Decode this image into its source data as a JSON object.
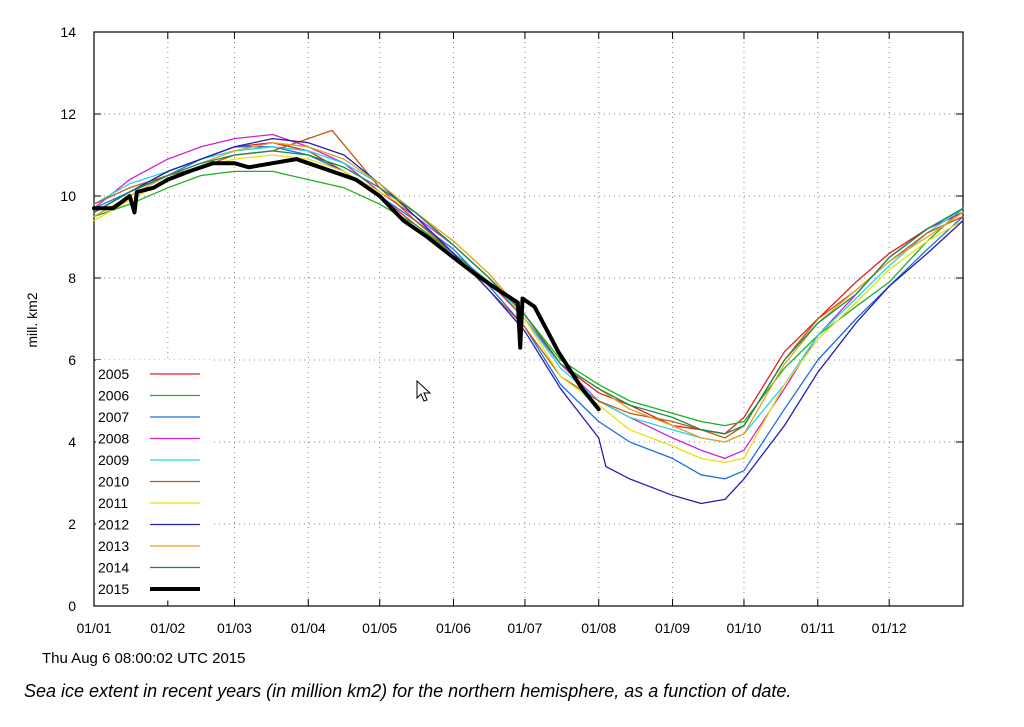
{
  "timestamp": "Thu Aug  6 08:00:02 UTC 2015",
  "caption": "Sea ice extent in recent years (in million km2) for the northern hemisphere, as a function of date.",
  "chart_data": {
    "type": "line",
    "title": "",
    "xlabel": "",
    "ylabel": "mill. km2",
    "xlim": [
      0,
      365
    ],
    "ylim": [
      0,
      14
    ],
    "yticks": [
      0,
      2,
      4,
      6,
      8,
      10,
      12,
      14
    ],
    "xticks": [
      {
        "label": "01/01",
        "day": 0
      },
      {
        "label": "01/02",
        "day": 31
      },
      {
        "label": "01/03",
        "day": 59
      },
      {
        "label": "01/04",
        "day": 90
      },
      {
        "label": "01/05",
        "day": 120
      },
      {
        "label": "01/06",
        "day": 151
      },
      {
        "label": "01/07",
        "day": 181
      },
      {
        "label": "01/08",
        "day": 212
      },
      {
        "label": "01/09",
        "day": 243
      },
      {
        "label": "01/10",
        "day": 273
      },
      {
        "label": "01/11",
        "day": 304
      },
      {
        "label": "01/12",
        "day": 334
      }
    ],
    "grid": true,
    "legend_position": "bottom-left",
    "series": [
      {
        "name": "2005",
        "color": "#e02020",
        "width": 1.3,
        "points": [
          [
            0,
            9.6
          ],
          [
            15,
            10.1
          ],
          [
            31,
            10.6
          ],
          [
            45,
            10.9
          ],
          [
            59,
            11.2
          ],
          [
            75,
            11.3
          ],
          [
            90,
            11.1
          ],
          [
            105,
            10.6
          ],
          [
            120,
            10.0
          ],
          [
            135,
            9.3
          ],
          [
            151,
            8.6
          ],
          [
            166,
            7.9
          ],
          [
            181,
            7.0
          ],
          [
            196,
            5.9
          ],
          [
            212,
            5.2
          ],
          [
            225,
            4.9
          ],
          [
            243,
            4.4
          ],
          [
            255,
            4.3
          ],
          [
            265,
            4.2
          ],
          [
            273,
            4.6
          ],
          [
            290,
            6.2
          ],
          [
            304,
            7.0
          ],
          [
            320,
            7.9
          ],
          [
            334,
            8.6
          ],
          [
            350,
            9.2
          ],
          [
            365,
            9.6
          ]
        ]
      },
      {
        "name": "2006",
        "color": "#20b020",
        "width": 1.3,
        "points": [
          [
            0,
            9.5
          ],
          [
            15,
            9.8
          ],
          [
            31,
            10.2
          ],
          [
            45,
            10.5
          ],
          [
            59,
            10.6
          ],
          [
            75,
            10.6
          ],
          [
            90,
            10.4
          ],
          [
            105,
            10.2
          ],
          [
            120,
            9.8
          ],
          [
            135,
            9.3
          ],
          [
            151,
            8.6
          ],
          [
            166,
            7.9
          ],
          [
            181,
            7.1
          ],
          [
            196,
            6.0
          ],
          [
            212,
            5.4
          ],
          [
            225,
            5.0
          ],
          [
            243,
            4.7
          ],
          [
            255,
            4.5
          ],
          [
            265,
            4.4
          ],
          [
            273,
            4.5
          ],
          [
            290,
            5.8
          ],
          [
            304,
            6.6
          ],
          [
            320,
            7.3
          ],
          [
            334,
            7.9
          ],
          [
            350,
            8.9
          ],
          [
            365,
            9.7
          ]
        ]
      },
      {
        "name": "2007",
        "color": "#1e6ee0",
        "width": 1.3,
        "points": [
          [
            0,
            9.7
          ],
          [
            15,
            10.1
          ],
          [
            31,
            10.5
          ],
          [
            45,
            10.9
          ],
          [
            59,
            11.2
          ],
          [
            75,
            11.2
          ],
          [
            90,
            11.0
          ],
          [
            105,
            10.6
          ],
          [
            120,
            10.0
          ],
          [
            135,
            9.4
          ],
          [
            151,
            8.7
          ],
          [
            166,
            7.8
          ],
          [
            181,
            6.8
          ],
          [
            196,
            5.4
          ],
          [
            212,
            4.5
          ],
          [
            225,
            4.0
          ],
          [
            243,
            3.6
          ],
          [
            255,
            3.2
          ],
          [
            265,
            3.1
          ],
          [
            273,
            3.3
          ],
          [
            290,
            4.8
          ],
          [
            304,
            6.0
          ],
          [
            320,
            7.0
          ],
          [
            334,
            7.8
          ],
          [
            350,
            8.7
          ],
          [
            365,
            9.5
          ]
        ]
      },
      {
        "name": "2008",
        "color": "#d020d0",
        "width": 1.3,
        "points": [
          [
            0,
            9.7
          ],
          [
            15,
            10.4
          ],
          [
            31,
            10.9
          ],
          [
            45,
            11.2
          ],
          [
            59,
            11.4
          ],
          [
            75,
            11.5
          ],
          [
            90,
            11.2
          ],
          [
            105,
            10.8
          ],
          [
            120,
            10.1
          ],
          [
            135,
            9.5
          ],
          [
            151,
            8.8
          ],
          [
            166,
            8.0
          ],
          [
            181,
            7.0
          ],
          [
            196,
            5.9
          ],
          [
            212,
            5.0
          ],
          [
            225,
            4.6
          ],
          [
            243,
            4.1
          ],
          [
            255,
            3.8
          ],
          [
            265,
            3.6
          ],
          [
            273,
            3.8
          ],
          [
            290,
            5.3
          ],
          [
            304,
            6.6
          ],
          [
            320,
            7.6
          ],
          [
            334,
            8.5
          ],
          [
            350,
            9.2
          ],
          [
            365,
            9.6
          ]
        ]
      },
      {
        "name": "2009",
        "color": "#20d8e8",
        "width": 1.3,
        "points": [
          [
            0,
            9.8
          ],
          [
            15,
            10.3
          ],
          [
            31,
            10.6
          ],
          [
            45,
            10.9
          ],
          [
            59,
            11.1
          ],
          [
            75,
            11.2
          ],
          [
            90,
            11.1
          ],
          [
            105,
            10.8
          ],
          [
            120,
            10.3
          ],
          [
            135,
            9.6
          ],
          [
            151,
            8.8
          ],
          [
            166,
            8.0
          ],
          [
            181,
            7.0
          ],
          [
            196,
            5.8
          ],
          [
            212,
            5.0
          ],
          [
            225,
            4.6
          ],
          [
            243,
            4.3
          ],
          [
            255,
            4.1
          ],
          [
            265,
            4.0
          ],
          [
            273,
            4.2
          ],
          [
            290,
            5.4
          ],
          [
            304,
            6.6
          ],
          [
            320,
            7.5
          ],
          [
            334,
            8.3
          ],
          [
            350,
            9.1
          ],
          [
            365,
            9.7
          ]
        ]
      },
      {
        "name": "2010",
        "color": "#c05a10",
        "width": 1.3,
        "points": [
          [
            0,
            9.8
          ],
          [
            15,
            10.2
          ],
          [
            31,
            10.5
          ],
          [
            45,
            10.7
          ],
          [
            59,
            11.0
          ],
          [
            75,
            11.1
          ],
          [
            90,
            11.4
          ],
          [
            100,
            11.6
          ],
          [
            110,
            10.9
          ],
          [
            120,
            10.2
          ],
          [
            135,
            9.4
          ],
          [
            151,
            8.6
          ],
          [
            166,
            7.7
          ],
          [
            181,
            6.8
          ],
          [
            196,
            5.6
          ],
          [
            212,
            5.0
          ],
          [
            225,
            4.7
          ],
          [
            243,
            4.5
          ],
          [
            255,
            4.3
          ],
          [
            265,
            4.1
          ],
          [
            273,
            4.4
          ],
          [
            290,
            6.0
          ],
          [
            304,
            7.0
          ],
          [
            320,
            7.7
          ],
          [
            334,
            8.4
          ],
          [
            350,
            9.1
          ],
          [
            365,
            9.5
          ]
        ]
      },
      {
        "name": "2011",
        "color": "#e8e010",
        "width": 1.3,
        "points": [
          [
            0,
            9.4
          ],
          [
            15,
            9.9
          ],
          [
            31,
            10.4
          ],
          [
            45,
            10.7
          ],
          [
            59,
            10.9
          ],
          [
            75,
            11.0
          ],
          [
            90,
            10.9
          ],
          [
            105,
            10.6
          ],
          [
            120,
            10.1
          ],
          [
            135,
            9.6
          ],
          [
            151,
            8.9
          ],
          [
            166,
            8.1
          ],
          [
            181,
            7.0
          ],
          [
            196,
            5.6
          ],
          [
            212,
            4.9
          ],
          [
            225,
            4.3
          ],
          [
            243,
            3.9
          ],
          [
            255,
            3.6
          ],
          [
            265,
            3.5
          ],
          [
            273,
            3.6
          ],
          [
            290,
            5.4
          ],
          [
            304,
            6.5
          ],
          [
            320,
            7.4
          ],
          [
            334,
            8.2
          ],
          [
            350,
            8.9
          ],
          [
            365,
            9.4
          ]
        ]
      },
      {
        "name": "2012",
        "color": "#2020b0",
        "width": 1.3,
        "points": [
          [
            0,
            9.6
          ],
          [
            15,
            10.1
          ],
          [
            31,
            10.6
          ],
          [
            45,
            10.9
          ],
          [
            59,
            11.2
          ],
          [
            75,
            11.4
          ],
          [
            90,
            11.3
          ],
          [
            105,
            11.0
          ],
          [
            120,
            10.3
          ],
          [
            135,
            9.5
          ],
          [
            151,
            8.6
          ],
          [
            166,
            7.7
          ],
          [
            181,
            6.7
          ],
          [
            196,
            5.3
          ],
          [
            212,
            4.1
          ],
          [
            215,
            3.4
          ],
          [
            225,
            3.1
          ],
          [
            243,
            2.7
          ],
          [
            255,
            2.5
          ],
          [
            265,
            2.6
          ],
          [
            273,
            3.1
          ],
          [
            290,
            4.4
          ],
          [
            304,
            5.7
          ],
          [
            320,
            6.9
          ],
          [
            334,
            7.8
          ],
          [
            350,
            8.6
          ],
          [
            365,
            9.4
          ]
        ]
      },
      {
        "name": "2013",
        "color": "#e8a020",
        "width": 1.3,
        "points": [
          [
            0,
            9.5
          ],
          [
            15,
            10.0
          ],
          [
            31,
            10.5
          ],
          [
            45,
            10.8
          ],
          [
            59,
            11.1
          ],
          [
            75,
            11.3
          ],
          [
            90,
            11.2
          ],
          [
            105,
            10.9
          ],
          [
            120,
            10.3
          ],
          [
            135,
            9.6
          ],
          [
            151,
            8.9
          ],
          [
            166,
            8.1
          ],
          [
            181,
            7.1
          ],
          [
            196,
            5.9
          ],
          [
            212,
            5.3
          ],
          [
            225,
            4.8
          ],
          [
            243,
            4.4
          ],
          [
            255,
            4.1
          ],
          [
            265,
            4.0
          ],
          [
            273,
            4.2
          ],
          [
            290,
            5.9
          ],
          [
            304,
            6.9
          ],
          [
            320,
            7.7
          ],
          [
            334,
            8.4
          ],
          [
            350,
            9.0
          ],
          [
            365,
            9.6
          ]
        ]
      },
      {
        "name": "2014",
        "color": "#108a50",
        "width": 1.3,
        "points": [
          [
            0,
            9.6
          ],
          [
            15,
            10.1
          ],
          [
            31,
            10.5
          ],
          [
            45,
            10.8
          ],
          [
            59,
            11.0
          ],
          [
            75,
            11.1
          ],
          [
            90,
            11.0
          ],
          [
            105,
            10.7
          ],
          [
            120,
            10.2
          ],
          [
            135,
            9.6
          ],
          [
            151,
            8.8
          ],
          [
            166,
            8.0
          ],
          [
            181,
            7.1
          ],
          [
            196,
            5.9
          ],
          [
            212,
            5.3
          ],
          [
            225,
            4.9
          ],
          [
            243,
            4.6
          ],
          [
            255,
            4.3
          ],
          [
            265,
            4.2
          ],
          [
            273,
            4.4
          ],
          [
            290,
            6.0
          ],
          [
            304,
            6.9
          ],
          [
            320,
            7.6
          ],
          [
            334,
            8.5
          ],
          [
            350,
            9.2
          ],
          [
            365,
            9.7
          ]
        ]
      },
      {
        "name": "2015",
        "color": "#000000",
        "width": 4,
        "points": [
          [
            0,
            9.7
          ],
          [
            8,
            9.7
          ],
          [
            15,
            10.0
          ],
          [
            17,
            9.6
          ],
          [
            18,
            10.1
          ],
          [
            25,
            10.2
          ],
          [
            31,
            10.4
          ],
          [
            40,
            10.6
          ],
          [
            50,
            10.8
          ],
          [
            59,
            10.8
          ],
          [
            65,
            10.7
          ],
          [
            75,
            10.8
          ],
          [
            85,
            10.9
          ],
          [
            90,
            10.8
          ],
          [
            100,
            10.6
          ],
          [
            110,
            10.4
          ],
          [
            120,
            10.0
          ],
          [
            130,
            9.4
          ],
          [
            140,
            9.0
          ],
          [
            151,
            8.5
          ],
          [
            160,
            8.1
          ],
          [
            170,
            7.7
          ],
          [
            178,
            7.4
          ],
          [
            179,
            6.3
          ],
          [
            180,
            7.5
          ],
          [
            185,
            7.3
          ],
          [
            195,
            6.2
          ],
          [
            205,
            5.3
          ],
          [
            212,
            4.8
          ]
        ]
      }
    ]
  }
}
